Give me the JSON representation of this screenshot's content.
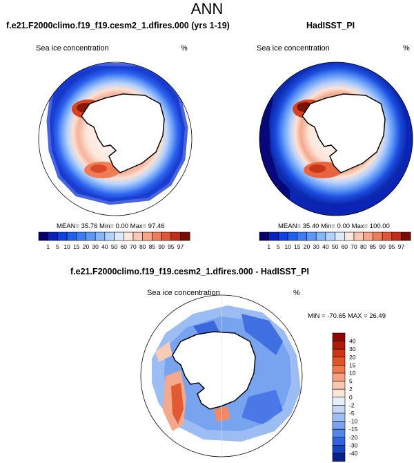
{
  "page_title": "ANN",
  "panels": [
    {
      "title": "f.e21.F2000climo.f19_f19.cesm2_1.dfires.000 (yrs 1-19)",
      "variable": "Sea ice concentration",
      "units": "%",
      "stats": "MEAN=  35.76  Min=   0.00  Max=  97.46"
    },
    {
      "title": "HadISST_PI",
      "variable": "Sea ice concentration",
      "units": "%",
      "stats": "MEAN=  35.40  Min=   0.00  Max= 100.00"
    },
    {
      "title": "f.e21.F2000climo.f19_f19.cesm2_1.dfires.000 - HadISST_PI",
      "variable": "Sea ice concentration",
      "units": "%",
      "stats": "MIN = -70.65  MAX =  26.49"
    }
  ],
  "chart_data": [
    {
      "type": "heatmap",
      "title": "f.e21.F2000climo.f19_f19.cesm2_1.dfires.000 (yrs 1-19)",
      "subtitle": "Sea ice concentration",
      "units": "%",
      "mean": 35.76,
      "min": 0.0,
      "max": 97.46,
      "colorbar": {
        "orientation": "horizontal",
        "ticks": [
          "1",
          "5",
          "10",
          "15",
          "20",
          "30",
          "40",
          "50",
          "60",
          "70",
          "80",
          "85",
          "90",
          "95",
          "97"
        ],
        "colors": [
          "#08006a",
          "#0a20bb",
          "#1040df",
          "#2060ef",
          "#3c7cf6",
          "#5c98f8",
          "#86b6fb",
          "#b4d2fc",
          "#ddeafd",
          "#fce8df",
          "#fbc8b4",
          "#f8a488",
          "#f27c5a",
          "#e35434",
          "#c02e16",
          "#7a0c02"
        ]
      }
    },
    {
      "type": "heatmap",
      "title": "HadISST_PI",
      "subtitle": "Sea ice concentration",
      "units": "%",
      "mean": 35.4,
      "min": 0.0,
      "max": 100.0,
      "colorbar": {
        "orientation": "horizontal",
        "ticks": [
          "1",
          "5",
          "10",
          "15",
          "20",
          "30",
          "40",
          "50",
          "60",
          "70",
          "80",
          "85",
          "90",
          "95",
          "97"
        ],
        "colors": [
          "#08006a",
          "#0a20bb",
          "#1040df",
          "#2060ef",
          "#3c7cf6",
          "#5c98f8",
          "#86b6fb",
          "#b4d2fc",
          "#ddeafd",
          "#fce8df",
          "#fbc8b4",
          "#f8a488",
          "#f27c5a",
          "#e35434",
          "#c02e16",
          "#7a0c02"
        ]
      }
    },
    {
      "type": "heatmap",
      "title": "f.e21.F2000climo.f19_f19.cesm2_1.dfires.000 - HadISST_PI",
      "subtitle": "Sea ice concentration",
      "units": "%",
      "min": -70.65,
      "max": 26.49,
      "colorbar": {
        "orientation": "vertical",
        "ticks": [
          "40",
          "30",
          "20",
          "15",
          "10",
          "5",
          "2",
          "0",
          "-2",
          "-5",
          "-10",
          "-15",
          "-20",
          "-30",
          "-40"
        ],
        "colors": [
          "#8c0a00",
          "#b01a06",
          "#cf3412",
          "#e4542a",
          "#ef7a4e",
          "#f5a282",
          "#f9c8b2",
          "#fbe4d8",
          "#e6eefa",
          "#c6d8f6",
          "#a0bef2",
          "#7aa2ee",
          "#5484e6",
          "#2e64dc",
          "#1844c4",
          "#08208c"
        ]
      }
    }
  ]
}
